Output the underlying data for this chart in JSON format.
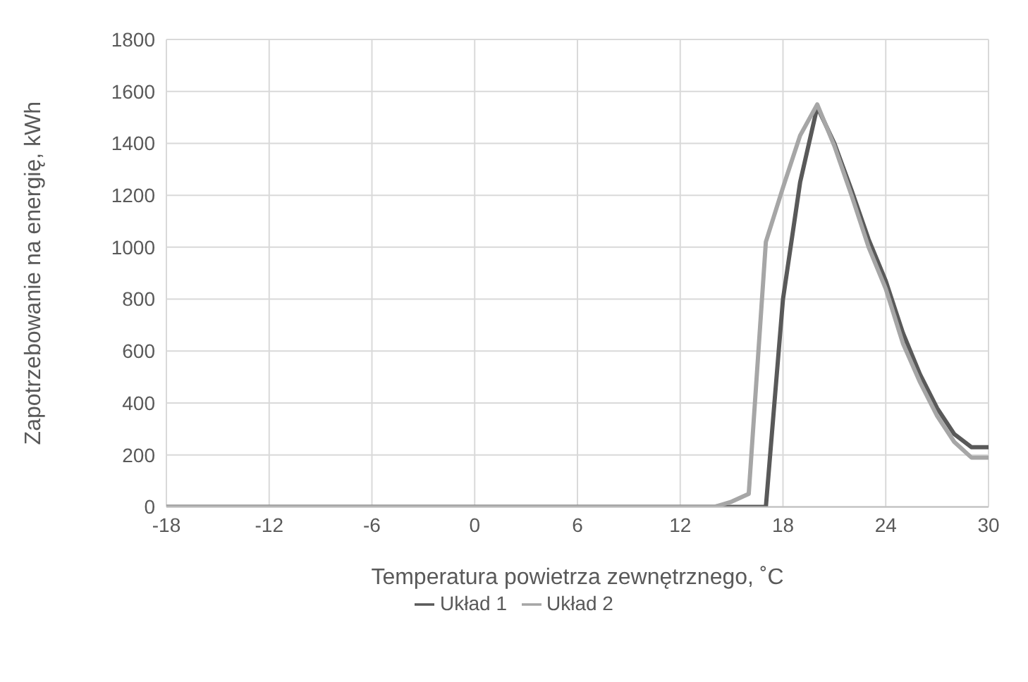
{
  "chart_data": {
    "type": "line",
    "xlabel": "Temperatura powietrza zewnętrznego, ˚C",
    "ylabel": "Zapotrzebowanie na energię, kWh",
    "x": [
      -18,
      -17,
      -16,
      -15,
      -14,
      -13,
      -12,
      -11,
      -10,
      -9,
      -8,
      -7,
      -6,
      -5,
      -4,
      -3,
      -2,
      -1,
      0,
      1,
      2,
      3,
      4,
      5,
      6,
      7,
      8,
      9,
      10,
      11,
      12,
      13,
      14,
      15,
      16,
      17,
      18,
      19,
      20,
      21,
      22,
      23,
      24,
      25,
      26,
      27,
      28,
      29,
      30
    ],
    "series": [
      {
        "name": "Układ 1",
        "color": "#595959",
        "values": [
          0,
          0,
          0,
          0,
          0,
          0,
          0,
          0,
          0,
          0,
          0,
          0,
          0,
          0,
          0,
          0,
          0,
          0,
          0,
          0,
          0,
          0,
          0,
          0,
          0,
          0,
          0,
          0,
          0,
          0,
          0,
          0,
          0,
          0,
          0,
          0,
          800,
          1250,
          1540,
          1400,
          1220,
          1030,
          870,
          670,
          510,
          380,
          280,
          230,
          230
        ]
      },
      {
        "name": "Układ 2",
        "color": "#a6a6a6",
        "values": [
          0,
          0,
          0,
          0,
          0,
          0,
          0,
          0,
          0,
          0,
          0,
          0,
          0,
          0,
          0,
          0,
          0,
          0,
          0,
          0,
          0,
          0,
          0,
          0,
          0,
          0,
          0,
          0,
          0,
          0,
          0,
          0,
          0,
          20,
          50,
          1020,
          1230,
          1430,
          1550,
          1390,
          1200,
          1000,
          840,
          630,
          480,
          350,
          250,
          190,
          190
        ]
      }
    ],
    "xlim": [
      -18,
      30
    ],
    "xticks": [
      -18,
      -12,
      -6,
      0,
      6,
      12,
      18,
      24,
      30
    ],
    "ylim": [
      0,
      1800
    ],
    "yticks": [
      0,
      200,
      400,
      600,
      800,
      1000,
      1200,
      1400,
      1600,
      1800
    ],
    "grid": true,
    "legend": "bottom",
    "marker": "none",
    "line_style": "solid"
  }
}
